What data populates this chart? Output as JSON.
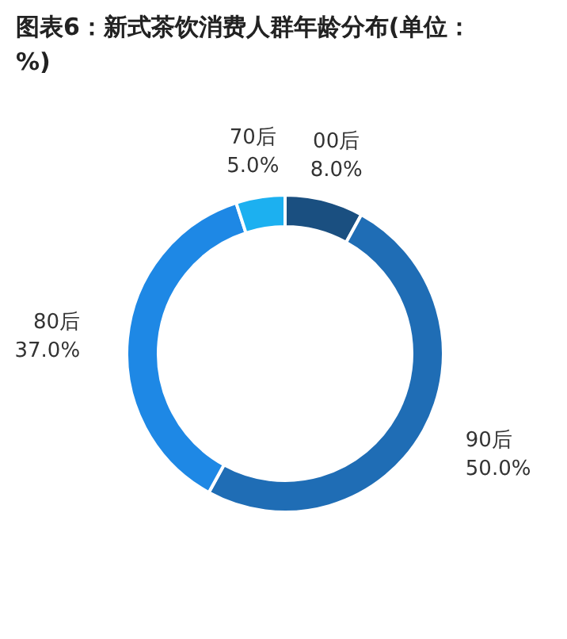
{
  "chart_data": {
    "type": "donut",
    "title": "图表6：新式茶饮消费人群年龄分布(单位：%)",
    "categories": [
      "00后",
      "90后",
      "80后",
      "70后"
    ],
    "values": [
      8.0,
      50.0,
      37.0,
      5.0
    ],
    "colors": [
      "#1a4f80",
      "#1f6db5",
      "#1e88e5",
      "#1cb0f0"
    ],
    "value_labels": [
      "8.0%",
      "50.0%",
      "37.0%",
      "5.0%"
    ]
  }
}
